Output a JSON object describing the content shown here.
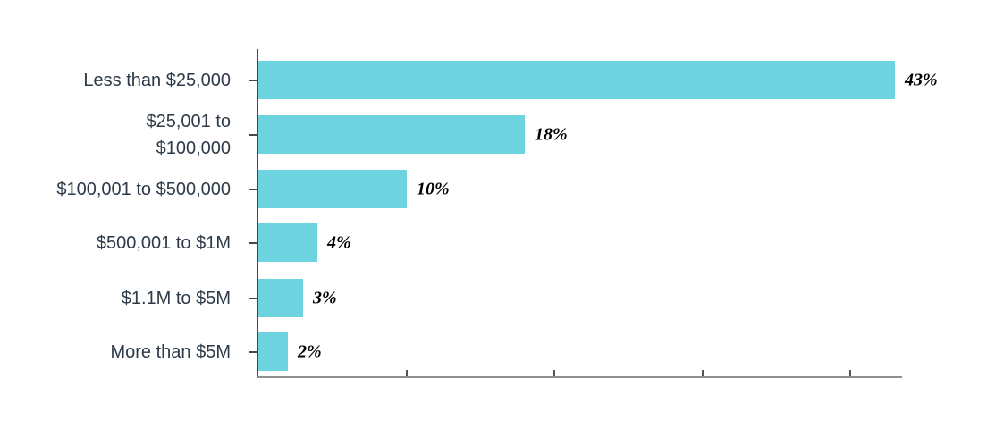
{
  "chart_data": {
    "type": "bar",
    "orientation": "horizontal",
    "title": "",
    "xlabel": "",
    "ylabel": "",
    "categories": [
      "Less than $25,000",
      "$25,001 to\n$100,000",
      "$100,001 to $500,000",
      "$500,001 to $1M",
      "$1.1M to $5M",
      "More than $5M"
    ],
    "values": [
      43,
      18,
      10,
      4,
      3,
      2
    ],
    "value_labels": [
      "43%",
      "18%",
      "10%",
      "4%",
      "3%",
      "2%"
    ],
    "xlim": [
      0,
      43.5
    ],
    "x_tick_values": [
      10,
      20,
      30,
      40
    ],
    "x_tick_labels_visible": false,
    "grid": false,
    "legend": "none",
    "colors": {
      "bar_fill": "#6dd3de",
      "category_label": "#2e3a48",
      "value_label": "#000000",
      "y_axis": "#474747",
      "x_axis": "#8f8f8f"
    }
  }
}
